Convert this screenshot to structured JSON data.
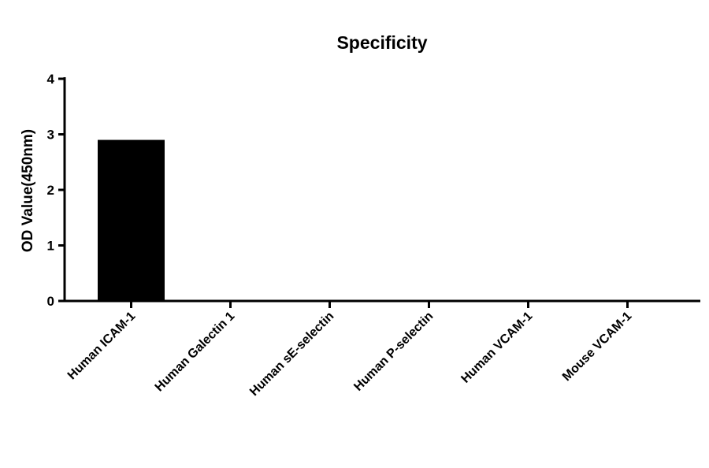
{
  "chart_data": {
    "type": "bar",
    "title": "Specificity",
    "xlabel": "",
    "ylabel": "OD Value(450nm)",
    "categories": [
      "Human ICAM-1",
      "Human Galectin 1",
      "Human sE-selectin",
      "Human P-selectin",
      "Human VCAM-1",
      "Mouse VCAM-1"
    ],
    "values": [
      2.9,
      0.0,
      0.0,
      0.0,
      0.0,
      0.0
    ],
    "ylim": [
      0,
      4
    ],
    "yticks": [
      "0",
      "1",
      "2",
      "3",
      "4"
    ],
    "grid": false,
    "legend": "none",
    "bar_color": "#000000",
    "axis_color": "#000000"
  }
}
